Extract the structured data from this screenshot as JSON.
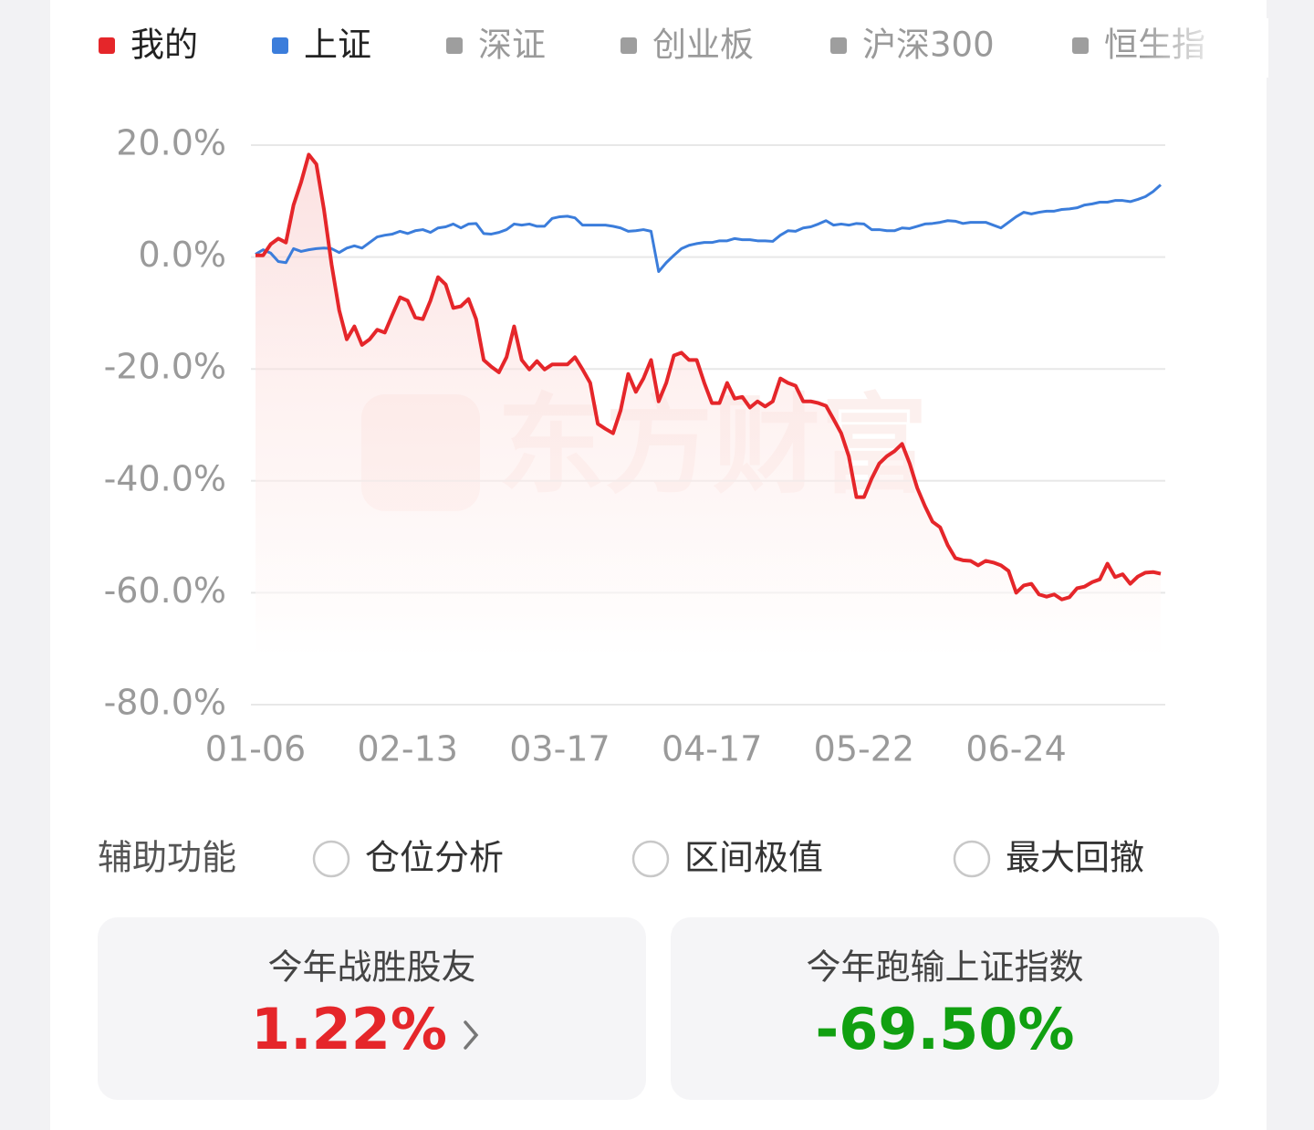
{
  "chart_data": {
    "type": "line",
    "categories": [
      "01-06",
      null,
      null,
      null,
      null,
      null,
      null,
      null,
      null,
      null,
      null,
      null,
      null,
      null,
      null,
      null,
      null,
      null,
      null,
      null,
      "02-13",
      null,
      null,
      null,
      null,
      null,
      null,
      null,
      null,
      null,
      null,
      null,
      null,
      null,
      null,
      null,
      null,
      null,
      null,
      null,
      "03-17",
      null,
      null,
      null,
      null,
      null,
      null,
      null,
      null,
      null,
      null,
      null,
      null,
      null,
      null,
      null,
      null,
      null,
      null,
      null,
      "04-17",
      null,
      null,
      null,
      null,
      null,
      null,
      null,
      null,
      null,
      null,
      null,
      null,
      null,
      null,
      null,
      null,
      null,
      null,
      null,
      "05-22",
      null,
      null,
      null,
      null,
      null,
      null,
      null,
      null,
      null,
      null,
      null,
      null,
      null,
      null,
      null,
      null,
      null,
      null,
      null,
      "06-24",
      null,
      null,
      null,
      null,
      null,
      null,
      null,
      null,
      null,
      null,
      null,
      null,
      null,
      null,
      null,
      null,
      null,
      null,
      null
    ],
    "series": [
      {
        "name": "我的",
        "color": "#e5262a",
        "values": [
          0.3,
          0.3,
          2.3,
          3.3,
          2.6,
          9.3,
          13.4,
          18.3,
          16.6,
          8.5,
          -1.3,
          -9.5,
          -14.7,
          -12.4,
          -15.7,
          -14.7,
          -13,
          -13.5,
          -10.3,
          -7.2,
          -7.8,
          -10.8,
          -11.1,
          -7.8,
          -3.6,
          -4.9,
          -9.1,
          -8.8,
          -7.5,
          -11.1,
          -18.4,
          -19.6,
          -20.6,
          -17.9,
          -12.4,
          -18.4,
          -20.1,
          -18.6,
          -20.1,
          -19.2,
          -19.2,
          -19.2,
          -17.9,
          -20.1,
          -22.5,
          -29.8,
          -30.7,
          -31.5,
          -27.4,
          -20.9,
          -24.1,
          -21.7,
          -18.4,
          -25.8,
          -22.5,
          -17.6,
          -17.1,
          -18.4,
          -18.4,
          -22.5,
          -26.1,
          -26.1,
          -22.5,
          -25.3,
          -25,
          -26.9,
          -25.8,
          -26.7,
          -25.8,
          -21.7,
          -22.5,
          -23,
          -25.8,
          -25.8,
          -26.1,
          -26.6,
          -29,
          -31.5,
          -35.6,
          -42.9,
          -42.9,
          -39.6,
          -36.9,
          -35.6,
          -34.7,
          -33.4,
          -36.9,
          -41.3,
          -44.5,
          -47.3,
          -48.3,
          -51.5,
          -53.8,
          -54.2,
          -54.3,
          -55.1,
          -54.3,
          -54.6,
          -55.1,
          -56.1,
          -60,
          -58.7,
          -58.4,
          -60.3,
          -60.7,
          -60.3,
          -61.2,
          -60.8,
          -59.2,
          -58.9,
          -58.1,
          -57.6,
          -54.8,
          -57.2,
          -56.7,
          -58.4,
          -57.1,
          -56.4,
          -56.3,
          -56.6
        ]
      },
      {
        "name": "上证",
        "color": "#3b7ddb",
        "values": [
          0.5,
          1.3,
          0.7,
          -0.8,
          -1,
          1.5,
          1,
          1.3,
          1.5,
          1.6,
          1.5,
          0.8,
          1.6,
          2,
          1.6,
          2.6,
          3.6,
          3.9,
          4.1,
          4.6,
          4.2,
          4.7,
          4.9,
          4.4,
          5.2,
          5.4,
          5.9,
          5.2,
          5.9,
          6,
          4.2,
          4.1,
          4.4,
          4.9,
          5.9,
          5.7,
          5.9,
          5.5,
          5.5,
          6.9,
          7.2,
          7.3,
          7,
          5.7,
          5.7,
          5.7,
          5.7,
          5.5,
          5.2,
          4.6,
          4.7,
          4.9,
          4.6,
          -2.6,
          -1,
          0.3,
          1.5,
          2.1,
          2.4,
          2.6,
          2.6,
          2.9,
          2.9,
          3.3,
          3.1,
          3.1,
          2.9,
          2.9,
          2.8,
          3.9,
          4.7,
          4.6,
          5.2,
          5.4,
          5.9,
          6.5,
          5.7,
          5.9,
          5.7,
          6,
          5.9,
          4.9,
          4.9,
          4.7,
          4.7,
          5.2,
          5.1,
          5.5,
          5.9,
          6,
          6.2,
          6.5,
          6.4,
          6,
          6.2,
          6.2,
          6.2,
          5.7,
          5.2,
          6.2,
          7.2,
          8,
          7.7,
          8,
          8.2,
          8.2,
          8.5,
          8.6,
          8.8,
          9.3,
          9.5,
          9.8,
          9.8,
          10.1,
          10.1,
          9.9,
          10.3,
          10.8,
          11.7,
          12.9
        ]
      }
    ],
    "inactive_legend": [
      {
        "name": "深证",
        "color": "#9e9e9e"
      },
      {
        "name": "创业板",
        "color": "#9e9e9e"
      },
      {
        "name": "沪深300",
        "color": "#9e9e9e"
      },
      {
        "name": "恒生指",
        "color": "#9e9e9e"
      }
    ],
    "legend": "top",
    "ylim": [
      -80,
      20
    ],
    "yticks": [
      {
        "value": -80,
        "label": "-80.0%"
      },
      {
        "value": -60,
        "label": "-60.0%"
      },
      {
        "value": -40,
        "label": "-40.0%"
      },
      {
        "value": -20,
        "label": "-20.0%"
      },
      {
        "value": 0,
        "label": "0.0%"
      },
      {
        "value": 20,
        "label": "20.0%"
      }
    ],
    "grid": true,
    "fill_first_series": true,
    "watermark": "东方财富"
  },
  "tools": {
    "label": "辅助功能",
    "options": [
      "仓位分析",
      "区间极值",
      "最大回撤"
    ]
  },
  "cards": [
    {
      "title": "今年战胜股友",
      "value": "1.22%",
      "color": "#e5262a"
    },
    {
      "title": "今年跑输上证指数",
      "value": "-69.50%",
      "color": "#11a011"
    }
  ]
}
